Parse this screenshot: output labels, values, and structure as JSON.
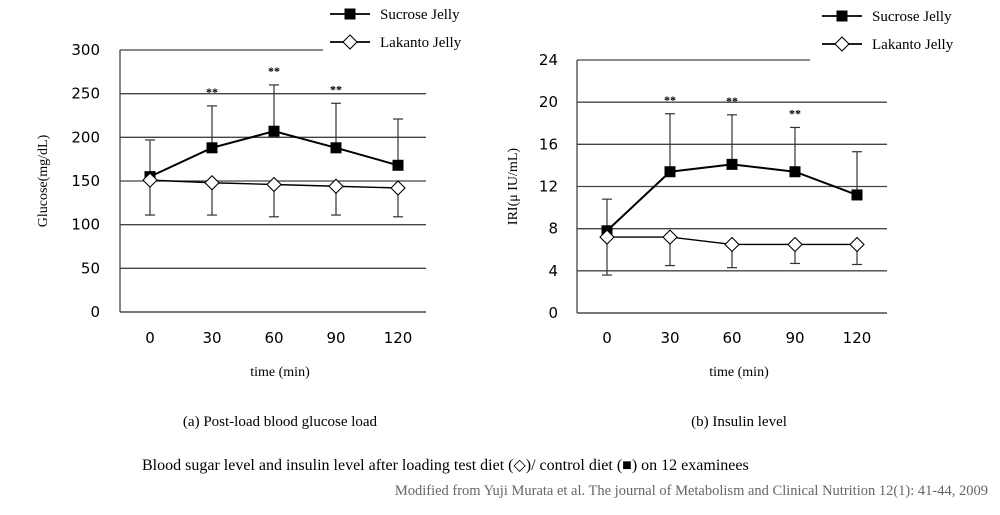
{
  "chart_data": [
    {
      "type": "line",
      "title": "",
      "caption": "(a) Post-load blood glucose load",
      "xlabel": "time (min)",
      "ylabel": "Glucose(mg/dL)",
      "categories": [
        "0",
        "30",
        "60",
        "90",
        "120"
      ],
      "ylim": [
        0,
        300
      ],
      "yticks": [
        "0",
        "50",
        "100",
        "150",
        "200",
        "250",
        "300"
      ],
      "grid": true,
      "legend_position": "top-right",
      "significance_marks": [
        "",
        "**",
        "**",
        "**",
        ""
      ],
      "series": [
        {
          "name": "Sucrose Jelly",
          "marker": "filled-square",
          "values": [
            155,
            188,
            207,
            188,
            168
          ],
          "error_upper": [
            197,
            236,
            260,
            239,
            221
          ]
        },
        {
          "name": "Lakanto Jelly",
          "marker": "open-diamond",
          "values": [
            151,
            148,
            146,
            144,
            142
          ],
          "error_lower": [
            111,
            111,
            109,
            111,
            109
          ]
        }
      ]
    },
    {
      "type": "line",
      "title": "",
      "caption": "(b) Insulin level",
      "xlabel": "time (min)",
      "ylabel": "IRI(μ IU/mL)",
      "categories": [
        "0",
        "30",
        "60",
        "90",
        "120"
      ],
      "ylim": [
        0,
        24
      ],
      "yticks": [
        "0",
        "4",
        "8",
        "12",
        "16",
        "20",
        "24"
      ],
      "grid": true,
      "legend_position": "top-right",
      "significance_marks": [
        "",
        "**",
        "**",
        "**",
        ""
      ],
      "series": [
        {
          "name": "Sucrose Jelly",
          "marker": "filled-square",
          "values": [
            7.8,
            13.4,
            14.1,
            13.4,
            11.2
          ],
          "error_upper": [
            10.8,
            18.9,
            18.8,
            17.6,
            15.3
          ]
        },
        {
          "name": "Lakanto Jelly",
          "marker": "open-diamond",
          "values": [
            7.2,
            7.2,
            6.5,
            6.5,
            6.5
          ],
          "error_lower": [
            3.6,
            4.5,
            4.3,
            4.7,
            4.6
          ]
        }
      ]
    }
  ],
  "figure_caption": "Blood sugar level and insulin level after loading test diet (◇)/ control diet (■) on 12 examinees",
  "source": "Modified from Yuji Murata et al. The journal of Metabolism and Clinical Nutrition 12(1): 41-44, 2009"
}
